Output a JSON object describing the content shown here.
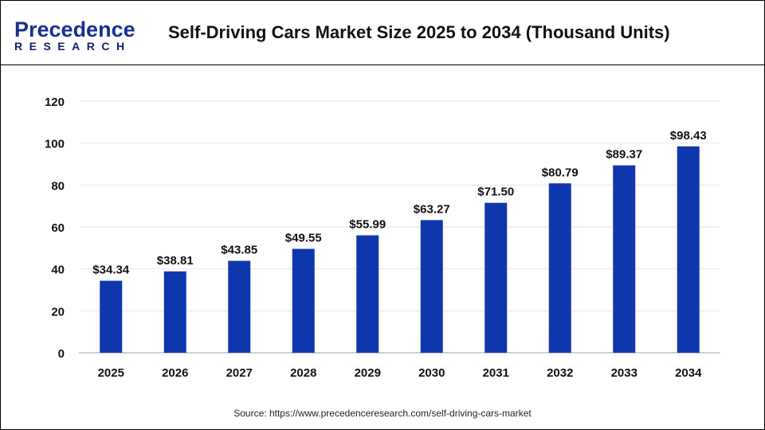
{
  "header": {
    "logo_line1": "Precedence",
    "logo_line2": "RESEARCH",
    "title": "Self-Driving Cars Market Size 2025 to 2034 (Thousand Units)"
  },
  "source": "Source: https://www.precedenceresearch.com/self-driving-cars-market",
  "colors": {
    "bar": "#0f37ad",
    "grid": "#e6e6e6",
    "axis": "#bfbfbf"
  },
  "chart_data": {
    "type": "bar",
    "title": "Self-Driving Cars Market Size 2025 to 2034 (Thousand Units)",
    "categories": [
      "2025",
      "2026",
      "2027",
      "2028",
      "2029",
      "2030",
      "2031",
      "2032",
      "2033",
      "2034"
    ],
    "values": [
      34.34,
      38.81,
      43.85,
      49.55,
      55.99,
      63.27,
      71.5,
      80.79,
      89.37,
      98.43
    ],
    "data_labels": [
      "$34.34",
      "$38.81",
      "$43.85",
      "$49.55",
      "$55.99",
      "$63.27",
      "$71.50",
      "$80.79",
      "$89.37",
      "$98.43"
    ],
    "yticks": [
      "0",
      "20",
      "40",
      "60",
      "80",
      "100",
      "120"
    ],
    "ylim": [
      0,
      120
    ],
    "grid": true,
    "xlabel": "",
    "ylabel": ""
  }
}
